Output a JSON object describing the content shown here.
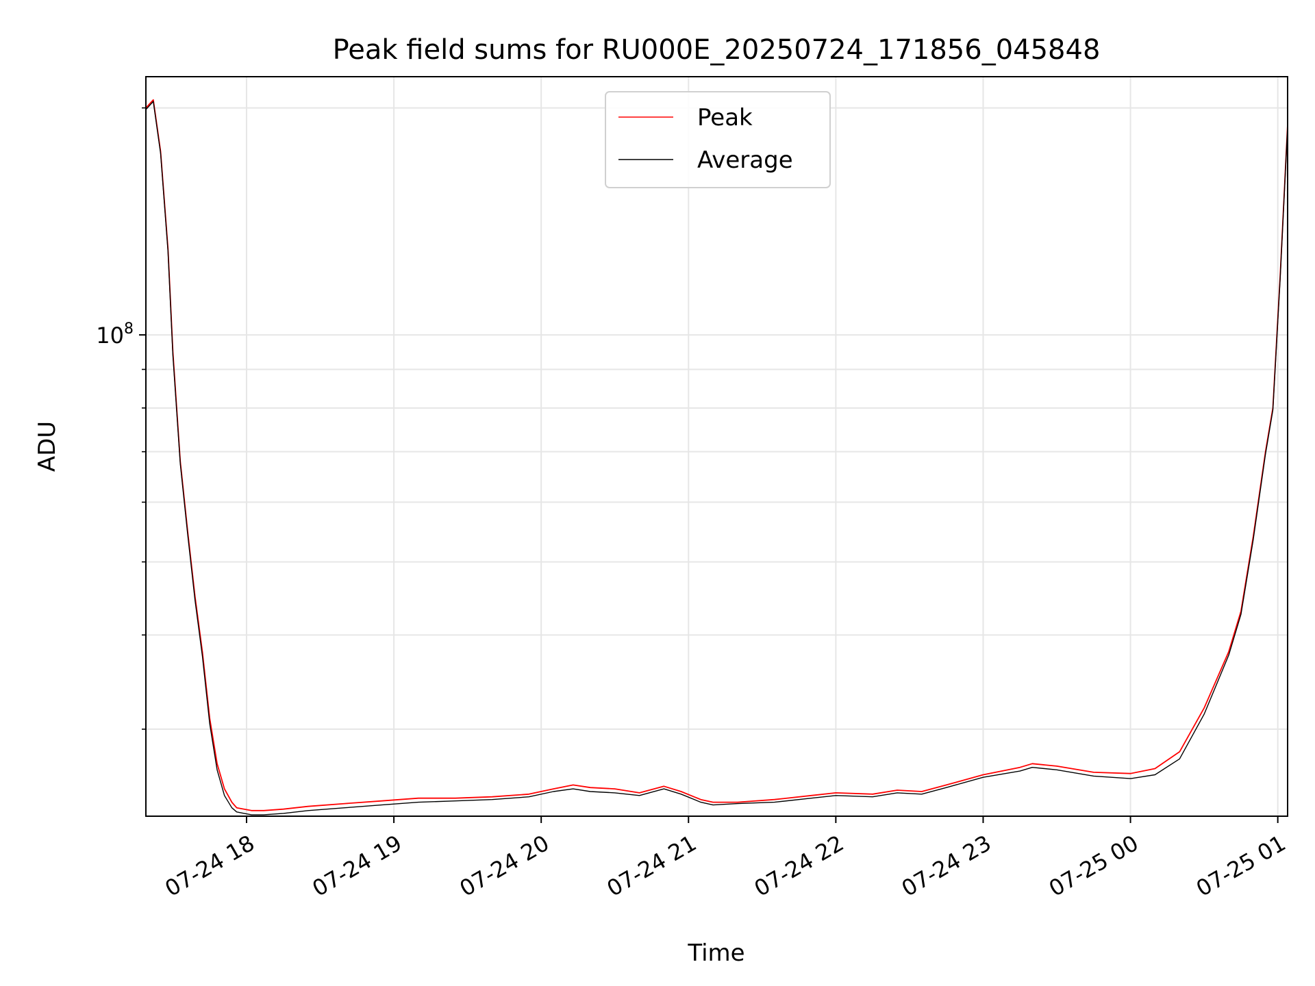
{
  "chart_data": {
    "type": "line",
    "title": "Peak field sums for RU000E_20250724_171856_045848",
    "xlabel": "Time",
    "ylabel": "ADU",
    "y_scale": "log",
    "grid": true,
    "legend_position": "top-center",
    "xlim": [
      "07-24 17:19",
      "07-25 01:04"
    ],
    "ylim": [
      23000000,
      220000000
    ],
    "x_ticks": [
      {
        "time": "07-24 18:00",
        "label": "07-24 18"
      },
      {
        "time": "07-24 19:00",
        "label": "07-24 19"
      },
      {
        "time": "07-24 20:00",
        "label": "07-24 20"
      },
      {
        "time": "07-24 21:00",
        "label": "07-24 21"
      },
      {
        "time": "07-24 22:00",
        "label": "07-24 22"
      },
      {
        "time": "07-24 23:00",
        "label": "07-24 23"
      },
      {
        "time": "07-25 00:00",
        "label": "07-25 00"
      },
      {
        "time": "07-25 01:00",
        "label": "07-25 01"
      }
    ],
    "y_ticks": [
      {
        "value": 100000000,
        "label_base": "10",
        "label_exp": "8"
      }
    ],
    "x": [
      "07-24 17:19",
      "07-24 17:22",
      "07-24 17:25",
      "07-24 17:28",
      "07-24 17:30",
      "07-24 17:33",
      "07-24 17:36",
      "07-24 17:39",
      "07-24 17:42",
      "07-24 17:45",
      "07-24 17:48",
      "07-24 17:51",
      "07-24 17:54",
      "07-24 17:56",
      "07-24 17:59",
      "07-24 18:02",
      "07-24 18:07",
      "07-24 18:15",
      "07-24 18:25",
      "07-24 18:40",
      "07-24 18:55",
      "07-24 19:10",
      "07-24 19:25",
      "07-24 19:40",
      "07-24 19:55",
      "07-24 20:05",
      "07-24 20:13",
      "07-24 20:20",
      "07-24 20:30",
      "07-24 20:40",
      "07-24 20:50",
      "07-24 20:57",
      "07-24 21:05",
      "07-24 21:10",
      "07-24 21:20",
      "07-24 21:35",
      "07-24 21:50",
      "07-24 22:00",
      "07-24 22:15",
      "07-24 22:25",
      "07-24 22:35",
      "07-24 22:45",
      "07-24 23:00",
      "07-24 23:15",
      "07-24 23:20",
      "07-24 23:30",
      "07-24 23:45",
      "07-25 00:00",
      "07-25 00:10",
      "07-25 00:20",
      "07-25 00:30",
      "07-25 00:40",
      "07-25 00:45",
      "07-25 00:50",
      "07-25 00:55",
      "07-25 00:58",
      "07-25 01:01",
      "07-25 01:04"
    ],
    "series": [
      {
        "name": "Peak",
        "color": "#ff0000",
        "values": [
          200000000,
          205000000,
          175000000,
          130000000,
          95000000,
          68000000,
          55000000,
          45000000,
          38000000,
          31000000,
          27000000,
          25000000,
          24000000,
          23600000,
          23500000,
          23400000,
          23400000,
          23500000,
          23700000,
          23900000,
          24100000,
          24300000,
          24300000,
          24400000,
          24600000,
          25000000,
          25300000,
          25100000,
          25000000,
          24700000,
          25200000,
          24800000,
          24200000,
          24000000,
          24000000,
          24200000,
          24500000,
          24700000,
          24600000,
          24900000,
          24800000,
          25300000,
          26100000,
          26700000,
          27000000,
          26800000,
          26300000,
          26200000,
          26600000,
          28000000,
          32000000,
          38000000,
          43000000,
          54000000,
          70000000,
          80000000,
          120000000,
          190000000
        ]
      },
      {
        "name": "Average",
        "color": "#000000",
        "values": [
          199000000,
          204000000,
          174000000,
          129000000,
          94000000,
          67500000,
          54500000,
          44500000,
          37500000,
          30500000,
          26500000,
          24500000,
          23600000,
          23300000,
          23200000,
          23100000,
          23100000,
          23200000,
          23400000,
          23600000,
          23800000,
          24000000,
          24100000,
          24200000,
          24400000,
          24800000,
          25000000,
          24800000,
          24700000,
          24500000,
          25000000,
          24600000,
          24000000,
          23800000,
          23900000,
          24000000,
          24300000,
          24500000,
          24400000,
          24700000,
          24600000,
          25100000,
          25900000,
          26400000,
          26700000,
          26500000,
          26000000,
          25800000,
          26100000,
          27400000,
          31400000,
          37600000,
          42600000,
          53500000,
          69500000,
          79500000,
          119000000,
          189000000
        ]
      }
    ]
  }
}
